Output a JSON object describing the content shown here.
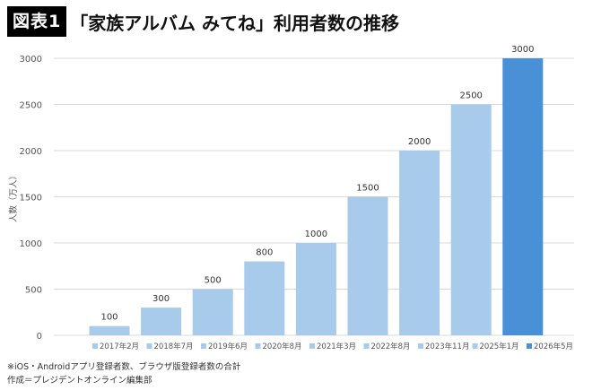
{
  "header": {
    "badge": "図表1",
    "title": "「家族アルバム みてね」利用者数の推移"
  },
  "chart_data": {
    "type": "bar",
    "ylabel": "人数（万人）",
    "ylim": [
      0,
      3000
    ],
    "yticks": [
      0,
      500,
      1000,
      1500,
      2000,
      2500,
      3000
    ],
    "grid": true,
    "legend_position": "bottom",
    "categories": [
      "2017年2月",
      "2018年7月",
      "2019年6月",
      "2020年8月",
      "2021年3月",
      "2022年8月",
      "2023年11月",
      "2025年1月",
      "2026年5月"
    ],
    "values": [
      100,
      300,
      500,
      800,
      1000,
      1500,
      2000,
      2500,
      3000
    ],
    "data_labels": [
      "100",
      "300",
      "500",
      "800",
      "1000",
      "1500",
      "2000",
      "2500",
      "3000"
    ],
    "colors": [
      "#a9cbeb",
      "#a9cbeb",
      "#a9cbeb",
      "#a9cbeb",
      "#a9cbeb",
      "#a9cbeb",
      "#a9cbeb",
      "#a9cbeb",
      "#4a90d6"
    ]
  },
  "notes": {
    "line1": "※iOS・Androidアプリ登録者数、ブラウザ版登録者数の合計",
    "line2": "作成＝プレジデントオンライン編集部"
  }
}
